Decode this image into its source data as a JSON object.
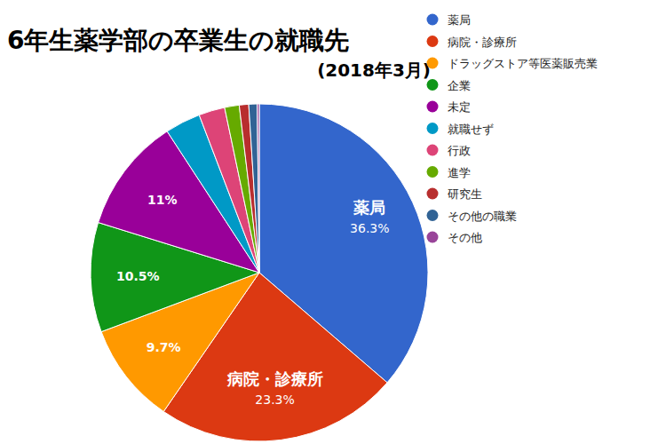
{
  "chart_data": {
    "type": "pie",
    "title": "6年生薬学部の卒業生の就職先",
    "subtitle": "(2018年3月)",
    "categories": [
      "薬局",
      "病院・診療所",
      "ドラッグストア等医薬販売業",
      "企業",
      "未定",
      "就職せず",
      "行政",
      "進学",
      "研究生",
      "その他の職業",
      "その他"
    ],
    "values": [
      36.3,
      23.3,
      9.7,
      10.5,
      11,
      3.4,
      2.5,
      1.4,
      0.9,
      0.8,
      0.2
    ],
    "value_labels": [
      "36.3%",
      "23.3%",
      "9.7%",
      "10.5%",
      "11%",
      null,
      null,
      null,
      null,
      null,
      null
    ],
    "colors": [
      "#3366cc",
      "#dc3912",
      "#ff9900",
      "#109618",
      "#990099",
      "#0099c6",
      "#dd4477",
      "#66aa00",
      "#b82e2e",
      "#316395",
      "#994499"
    ],
    "data_labels": true,
    "legend": "top-right"
  }
}
